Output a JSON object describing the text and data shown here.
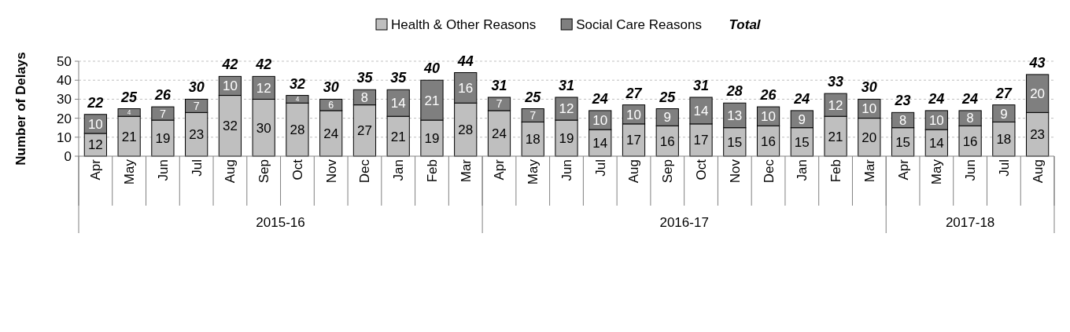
{
  "chart_data": {
    "type": "bar",
    "stacked": true,
    "ylabel": "Number of Delays",
    "categories": [
      "Apr",
      "May",
      "Jun",
      "Jul",
      "Aug",
      "Sep",
      "Oct",
      "Nov",
      "Dec",
      "Jan",
      "Feb",
      "Mar",
      "Apr",
      "May",
      "Jun",
      "Jul",
      "Aug",
      "Sep",
      "Oct",
      "Nov",
      "Dec",
      "Jan",
      "Feb",
      "Mar",
      "Apr",
      "May",
      "Jun",
      "Jul",
      "Aug"
    ],
    "series": [
      {
        "name": "Health & Other Reasons",
        "color": "#bfbfbf",
        "values": [
          12,
          21,
          19,
          23,
          32,
          30,
          28,
          24,
          27,
          21,
          19,
          28,
          24,
          18,
          19,
          14,
          17,
          16,
          17,
          15,
          16,
          15,
          21,
          20,
          15,
          14,
          16,
          18,
          23
        ]
      },
      {
        "name": "Social Care Reasons",
        "color": "#7f7f7f",
        "values": [
          10,
          4,
          7,
          7,
          10,
          12,
          4,
          6,
          8,
          14,
          21,
          16,
          7,
          7,
          12,
          10,
          10,
          9,
          14,
          13,
          10,
          9,
          12,
          10,
          8,
          10,
          8,
          9,
          20
        ]
      }
    ],
    "totals": [
      "22",
      "25",
      "26",
      "30",
      "42",
      "42",
      "32",
      "30",
      "35",
      "35",
      "40",
      "44",
      "31",
      "25",
      "31",
      "24",
      "27",
      "25",
      "31",
      "28",
      "26",
      "24",
      "33",
      "30",
      "23",
      "24",
      "24",
      "27",
      "43"
    ],
    "annotations": [
      "Total",
      "2015-16",
      "2016-17",
      "2017-18"
    ],
    "data_labels": true,
    "ylim": [
      0,
      50
    ],
    "yticks": [
      0,
      10,
      20,
      30,
      40,
      50
    ],
    "grid": "y",
    "legend": "top"
  }
}
